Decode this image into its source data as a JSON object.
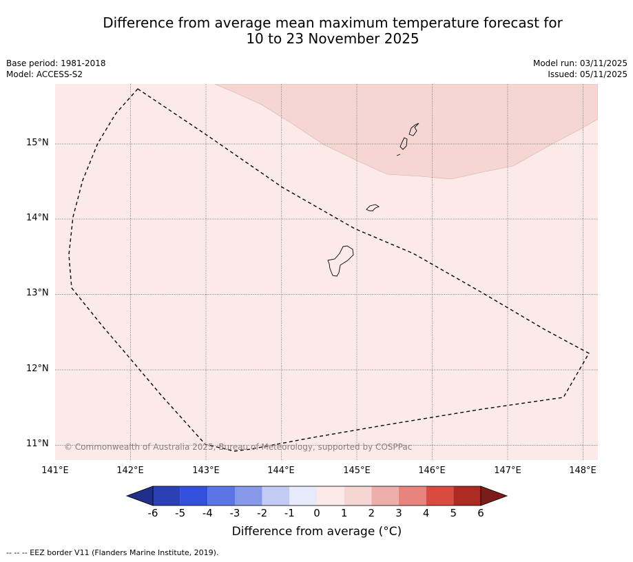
{
  "title": {
    "line1": "Difference from average mean maximum temperature forecast for",
    "line2": "10 to 23 November 2025"
  },
  "meta": {
    "base_period": "Base period: 1981-2018",
    "model": "Model: ACCESS-S2",
    "model_run": "Model run: 03/11/2025",
    "issued": "Issued: 05/11/2025"
  },
  "map": {
    "lat_labels": [
      "15°N",
      "14°N",
      "13°N",
      "12°N",
      "11°N"
    ],
    "lon_labels": [
      "141°E",
      "142°E",
      "143°E",
      "144°E",
      "145°E",
      "146°E",
      "147°E",
      "148°E"
    ],
    "copyright": "© Commonwealth of Australia 2025, Bureau of Meteorology, supported by COSPPac",
    "colors": {
      "anomaly_0_to_1": "#fbeae8",
      "anomaly_1_to_2": "#f5d6d3"
    }
  },
  "colorbar": {
    "ticks": [
      "-6",
      "-5",
      "-4",
      "-3",
      "-2",
      "-1",
      "0",
      "1",
      "2",
      "3",
      "4",
      "5",
      "6"
    ],
    "colors": [
      "#1f2f8a",
      "#2a3fb4",
      "#3350dc",
      "#5d74e4",
      "#8797ea",
      "#c3caf3",
      "#e6eafb",
      "#fbeae8",
      "#f5d6d3",
      "#eeaea9",
      "#e8847e",
      "#d94a3f",
      "#ac2a22",
      "#7a1c18"
    ],
    "label": "Difference from average (°C)"
  },
  "footer": {
    "eez_legend": "--  --  -- EEZ border V11 (Flanders Marine Institute, 2019)."
  }
}
